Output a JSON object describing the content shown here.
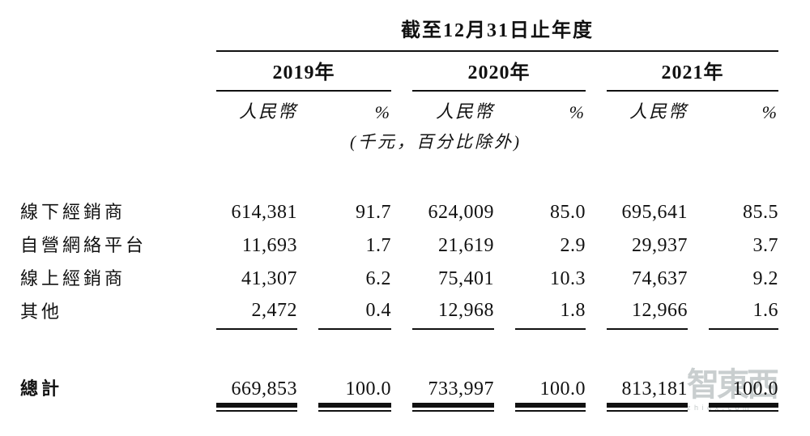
{
  "page": {
    "background_color": "#ffffff",
    "text_color": "#111111",
    "rule_color": "#111111"
  },
  "table": {
    "period_header": "截至12月31日止年度",
    "year_groups": [
      {
        "label": "2019年"
      },
      {
        "label": "2020年"
      },
      {
        "label": "2021年"
      }
    ],
    "sub_headers": {
      "currency": "人民幣",
      "percent": "%"
    },
    "unit_note": "(千元，百分比除外)",
    "rows": [
      {
        "label": "線下經銷商",
        "values": [
          "614,381",
          "91.7",
          "624,009",
          "85.0",
          "695,641",
          "85.5"
        ]
      },
      {
        "label": "自營網絡平台",
        "values": [
          "11,693",
          "1.7",
          "21,619",
          "2.9",
          "29,937",
          "3.7"
        ]
      },
      {
        "label": "線上經銷商",
        "values": [
          "41,307",
          "6.2",
          "75,401",
          "10.3",
          "74,637",
          "9.2"
        ]
      },
      {
        "label": "其他",
        "values": [
          "2,472",
          "0.4",
          "12,968",
          "1.8",
          "12,966",
          "1.6"
        ]
      }
    ],
    "total_row": {
      "label": "總計",
      "values": [
        "669,853",
        "100.0",
        "733,997",
        "100.0",
        "813,181",
        "100.0"
      ]
    }
  },
  "watermark": {
    "logo_text": "智東西",
    "domain": "zhidx.com",
    "color": "#c9cecf"
  }
}
